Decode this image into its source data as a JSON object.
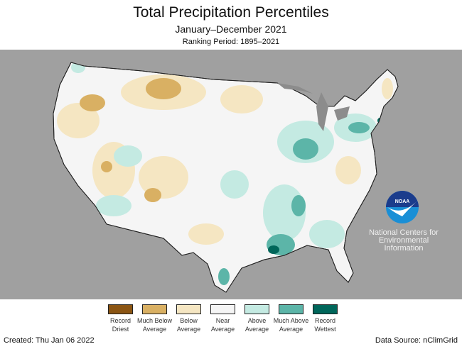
{
  "title": "Total Precipitation Percentiles",
  "subtitle": "January–December 2021",
  "ranking_period": "Ranking Period: 1895–2021",
  "legend": [
    {
      "label": "Record Driest",
      "color": "#8b5513"
    },
    {
      "label": "Much Below Average",
      "color": "#d9b063"
    },
    {
      "label": "Below Average",
      "color": "#f5e6c2"
    },
    {
      "label": "Near Average",
      "color": "#f5f5f5"
    },
    {
      "label": "Above Average",
      "color": "#c4eae2"
    },
    {
      "label": "Much Above Average",
      "color": "#5cb5a8"
    },
    {
      "label": "Record Wettest",
      "color": "#00665a"
    }
  ],
  "logo": {
    "text": "NOAA",
    "org": "National Centers for Environmental Information"
  },
  "created": "Created: Thu Jan 06 2022",
  "source": "Data Source: nClimGrid"
}
